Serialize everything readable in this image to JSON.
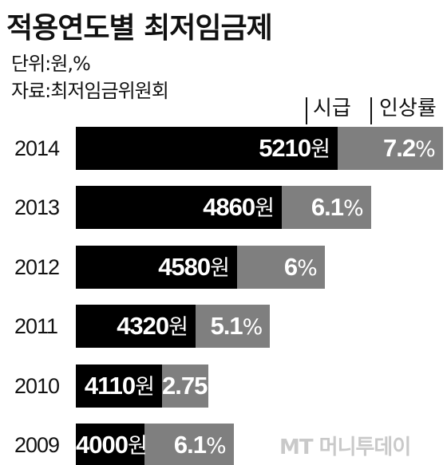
{
  "title": "적용연도별  최저임금제",
  "unit_line": "단위:원,%",
  "source_line": "자료:최저임금위원회",
  "legend": {
    "wage": "시급",
    "rate": "인상률"
  },
  "watermark": "MT 머니투데이",
  "colors": {
    "wage": "#000000",
    "rate": "#7f7f7f",
    "text_on_bar": "#ffffff"
  },
  "chart_data": {
    "type": "bar",
    "orientation": "horizontal",
    "stacked": true,
    "title": "적용연도별  최저임금제",
    "categories": [
      "2014",
      "2013",
      "2012",
      "2011",
      "2010",
      "2009"
    ],
    "series": [
      {
        "name": "시급",
        "unit": "원",
        "values": [
          5210,
          4860,
          4580,
          4320,
          4110,
          4000
        ],
        "labels": [
          "5210",
          "4860",
          "4580",
          "4320",
          "4110",
          "4000"
        ]
      },
      {
        "name": "인상률",
        "unit": "%",
        "values": [
          7.2,
          6.1,
          6,
          5.1,
          2.75,
          6.1
        ],
        "labels": [
          "7.2",
          "6.1",
          "6",
          "5.1",
          "2.75",
          "6.1"
        ]
      }
    ],
    "wage_suffix": "원",
    "rate_suffix": "%",
    "legend_position": "top-right",
    "grid": false
  }
}
